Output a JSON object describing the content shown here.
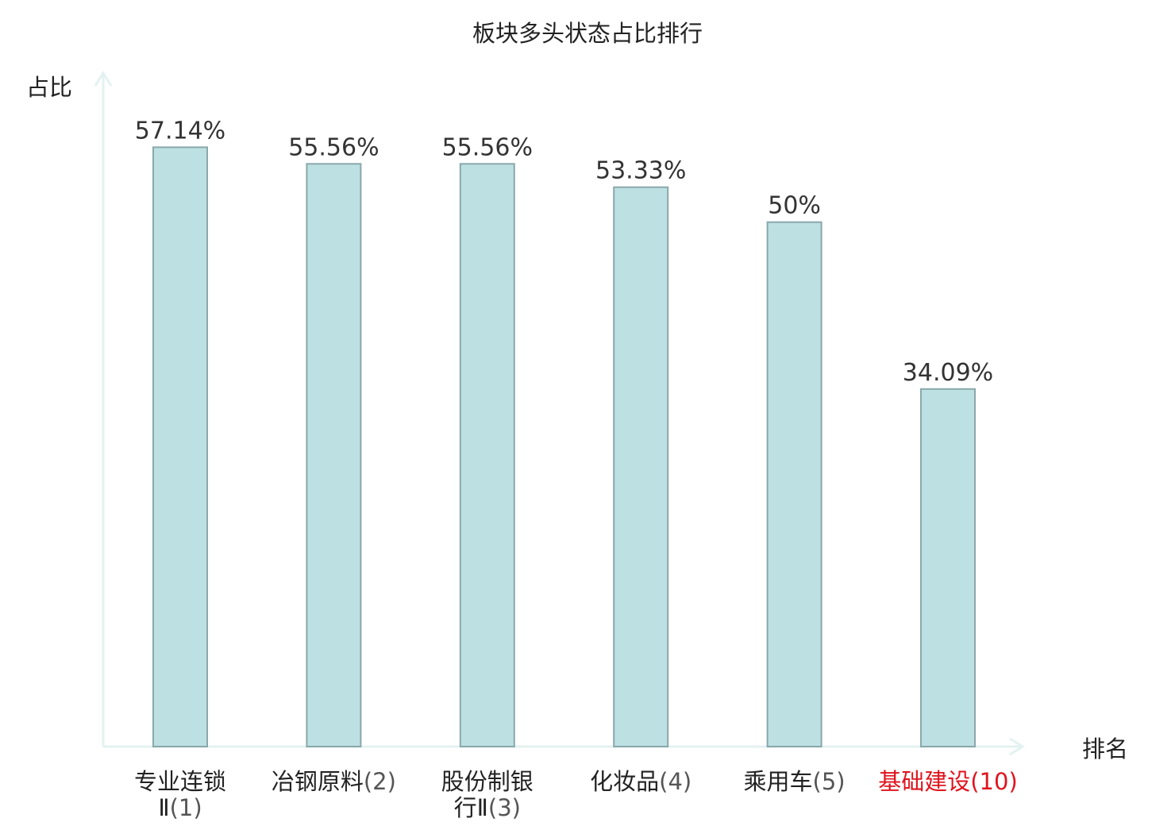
{
  "chart_data": {
    "type": "bar",
    "title": "板块多头状态占比排行",
    "ylabel": "占比",
    "xlabel": "排名",
    "ylim": [
      0,
      63
    ],
    "grid": false,
    "categories": [
      {
        "name_lines": [
          "专业连锁",
          "Ⅱ"
        ],
        "rank": "(1)",
        "highlight": false
      },
      {
        "name_lines": [
          "冶钢原料"
        ],
        "rank": "(2)",
        "highlight": false
      },
      {
        "name_lines": [
          "股份制银",
          "行Ⅱ"
        ],
        "rank": "(3)",
        "highlight": false
      },
      {
        "name_lines": [
          "化妆品"
        ],
        "rank": "(4)",
        "highlight": false
      },
      {
        "name_lines": [
          "乘用车"
        ],
        "rank": "(5)",
        "highlight": false
      },
      {
        "name_lines": [
          "基础建设"
        ],
        "rank": "(10)",
        "highlight": true
      }
    ],
    "values": [
      57.14,
      55.56,
      55.56,
      53.33,
      50,
      34.09
    ],
    "value_labels": [
      "57.14%",
      "55.56%",
      "55.56%",
      "53.33%",
      "50%",
      "34.09%"
    ]
  },
  "colors": {
    "bar_fill": "#bde0e3",
    "bar_stroke": "#8aa8aa",
    "axis": "#e3f2f0",
    "text": "#222222",
    "value_text": "#333333",
    "rank_text": "#555555",
    "highlight": "#e0141e"
  }
}
